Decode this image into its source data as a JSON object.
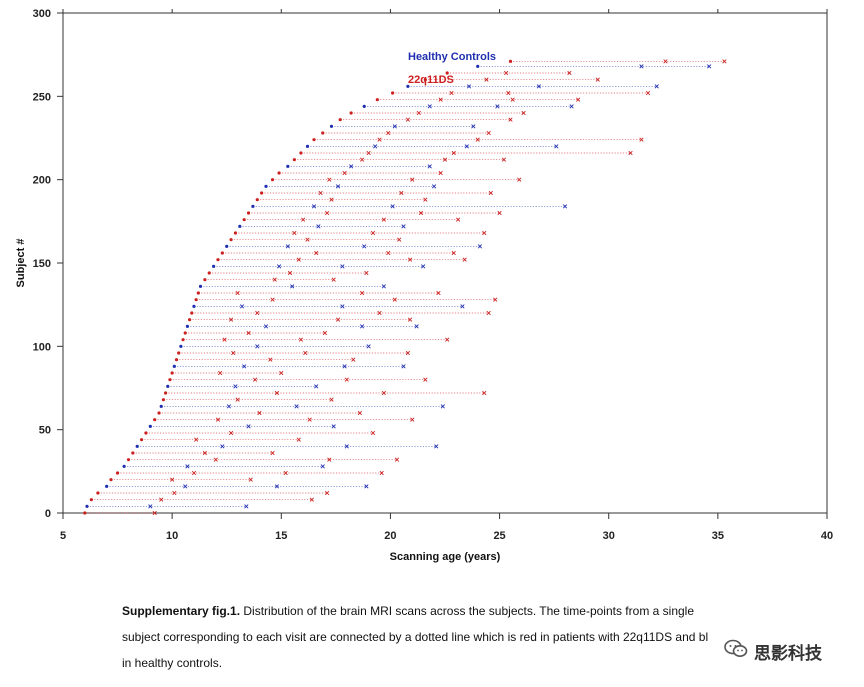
{
  "chart_data": {
    "type": "scatter",
    "xlabel": "Scanning age (years)",
    "ylabel": "Subject #",
    "xlim": [
      5,
      40
    ],
    "ylim": [
      0,
      300
    ],
    "x_ticks": [
      "5",
      "10",
      "15",
      "20",
      "25",
      "30",
      "35",
      "40"
    ],
    "y_ticks": [
      "0",
      "50",
      "100",
      "150",
      "200",
      "250",
      "300"
    ],
    "grid": false,
    "legend_position": "top-center",
    "series": [
      {
        "name": "Healthy Controls",
        "color": "#1f2fb0"
      },
      {
        "name": "22q11DS",
        "color": "#cc1f1f"
      }
    ],
    "subjects": [
      {
        "id": 0,
        "ages": [
          6.0,
          9.2
        ]
      },
      {
        "id": 4,
        "ages": [
          6.1,
          9.0,
          13.4
        ]
      },
      {
        "id": 8,
        "ages": [
          6.3,
          9.5,
          16.4
        ]
      },
      {
        "id": 12,
        "ages": [
          6.6,
          10.1,
          17.1
        ]
      },
      {
        "id": 16,
        "ages": [
          7.0,
          10.6,
          14.8,
          18.9
        ]
      },
      {
        "id": 20,
        "ages": [
          7.2,
          10.0,
          13.6
        ]
      },
      {
        "id": 24,
        "ages": [
          7.5,
          11.0,
          15.2,
          19.6
        ]
      },
      {
        "id": 28,
        "ages": [
          7.8,
          10.7,
          16.9
        ]
      },
      {
        "id": 32,
        "ages": [
          8.0,
          12.0,
          17.2,
          20.3
        ]
      },
      {
        "id": 36,
        "ages": [
          8.2,
          11.5,
          14.6
        ]
      },
      {
        "id": 40,
        "ages": [
          8.4,
          12.3,
          18.0,
          22.1
        ]
      },
      {
        "id": 44,
        "ages": [
          8.6,
          11.1,
          15.8
        ]
      },
      {
        "id": 48,
        "ages": [
          8.8,
          12.7,
          19.2
        ]
      },
      {
        "id": 52,
        "ages": [
          9.0,
          13.5,
          17.4
        ]
      },
      {
        "id": 56,
        "ages": [
          9.2,
          12.1,
          16.3,
          21.0
        ]
      },
      {
        "id": 60,
        "ages": [
          9.4,
          14.0,
          18.6
        ]
      },
      {
        "id": 64,
        "ages": [
          9.5,
          12.6,
          15.7,
          22.4
        ]
      },
      {
        "id": 68,
        "ages": [
          9.6,
          13.0,
          17.3
        ]
      },
      {
        "id": 72,
        "ages": [
          9.7,
          14.8,
          19.7,
          24.3
        ]
      },
      {
        "id": 76,
        "ages": [
          9.8,
          12.9,
          16.6
        ]
      },
      {
        "id": 80,
        "ages": [
          9.9,
          13.8,
          18.0,
          21.6
        ]
      },
      {
        "id": 84,
        "ages": [
          10.0,
          12.2,
          15.0
        ]
      },
      {
        "id": 88,
        "ages": [
          10.1,
          13.3,
          17.9,
          20.6
        ]
      },
      {
        "id": 92,
        "ages": [
          10.2,
          14.5,
          18.3
        ]
      },
      {
        "id": 96,
        "ages": [
          10.3,
          12.8,
          16.1,
          20.8
        ]
      },
      {
        "id": 100,
        "ages": [
          10.4,
          13.9,
          19.0
        ]
      },
      {
        "id": 104,
        "ages": [
          10.5,
          12.4,
          15.9,
          22.6
        ]
      },
      {
        "id": 108,
        "ages": [
          10.6,
          13.5,
          17.0
        ]
      },
      {
        "id": 112,
        "ages": [
          10.7,
          14.3,
          18.7,
          21.2
        ]
      },
      {
        "id": 116,
        "ages": [
          10.8,
          12.7,
          17.6,
          20.9
        ]
      },
      {
        "id": 120,
        "ages": [
          10.9,
          13.9,
          19.5,
          24.5
        ]
      },
      {
        "id": 124,
        "ages": [
          11.0,
          13.2,
          17.8,
          23.3
        ]
      },
      {
        "id": 128,
        "ages": [
          11.1,
          14.6,
          20.2,
          24.8
        ]
      },
      {
        "id": 132,
        "ages": [
          11.2,
          13.0,
          18.7,
          22.2
        ]
      },
      {
        "id": 136,
        "ages": [
          11.3,
          15.5,
          19.7
        ]
      },
      {
        "id": 140,
        "ages": [
          11.5,
          14.7,
          17.4
        ]
      },
      {
        "id": 144,
        "ages": [
          11.7,
          15.4,
          18.9
        ]
      },
      {
        "id": 148,
        "ages": [
          11.9,
          14.9,
          17.8,
          21.5
        ]
      },
      {
        "id": 152,
        "ages": [
          12.1,
          15.8,
          20.9,
          23.4
        ]
      },
      {
        "id": 156,
        "ages": [
          12.3,
          16.6,
          19.9,
          22.9
        ]
      },
      {
        "id": 160,
        "ages": [
          12.5,
          15.3,
          18.8,
          24.1
        ]
      },
      {
        "id": 164,
        "ages": [
          12.7,
          16.2,
          20.4
        ]
      },
      {
        "id": 168,
        "ages": [
          12.9,
          15.6,
          19.2,
          24.3
        ]
      },
      {
        "id": 172,
        "ages": [
          13.1,
          16.7,
          20.6
        ]
      },
      {
        "id": 176,
        "ages": [
          13.3,
          16.0,
          19.7,
          23.1
        ]
      },
      {
        "id": 180,
        "ages": [
          13.5,
          17.1,
          21.4,
          25.0
        ]
      },
      {
        "id": 184,
        "ages": [
          13.7,
          16.5,
          20.1,
          28.0
        ]
      },
      {
        "id": 188,
        "ages": [
          13.9,
          17.3,
          21.6
        ]
      },
      {
        "id": 192,
        "ages": [
          14.1,
          16.8,
          20.5,
          24.6
        ]
      },
      {
        "id": 196,
        "ages": [
          14.3,
          17.6,
          22.0
        ]
      },
      {
        "id": 200,
        "ages": [
          14.6,
          17.2,
          21.0,
          25.9
        ]
      },
      {
        "id": 204,
        "ages": [
          14.9,
          17.9,
          22.3
        ]
      },
      {
        "id": 208,
        "ages": [
          15.3,
          18.2,
          21.8
        ]
      },
      {
        "id": 212,
        "ages": [
          15.6,
          18.7,
          22.5,
          25.2
        ]
      },
      {
        "id": 216,
        "ages": [
          15.9,
          19.0,
          22.9,
          31.0
        ]
      },
      {
        "id": 220,
        "ages": [
          16.2,
          19.3,
          23.5,
          27.6
        ]
      },
      {
        "id": 224,
        "ages": [
          16.5,
          19.5,
          24.0,
          31.5
        ]
      },
      {
        "id": 228,
        "ages": [
          16.9,
          19.9,
          24.5
        ]
      },
      {
        "id": 232,
        "ages": [
          17.3,
          20.2,
          23.8
        ]
      },
      {
        "id": 236,
        "ages": [
          17.7,
          20.8,
          25.5
        ]
      },
      {
        "id": 240,
        "ages": [
          18.2,
          21.3,
          26.1
        ]
      },
      {
        "id": 244,
        "ages": [
          18.8,
          21.8,
          24.9,
          28.3
        ]
      },
      {
        "id": 248,
        "ages": [
          19.4,
          22.3,
          25.6,
          28.6
        ]
      },
      {
        "id": 252,
        "ages": [
          20.1,
          22.8,
          25.4,
          31.8
        ]
      },
      {
        "id": 256,
        "ages": [
          20.8,
          23.6,
          26.8,
          32.2
        ]
      },
      {
        "id": 260,
        "ages": [
          21.6,
          24.4,
          29.5
        ]
      },
      {
        "id": 264,
        "ages": [
          22.6,
          25.3,
          28.2
        ]
      },
      {
        "id": 268,
        "ages": [
          24.0,
          31.5,
          34.6
        ]
      },
      {
        "id": 271,
        "ages": [
          25.5,
          32.6,
          35.3
        ]
      }
    ],
    "legend_order": [
      "22q11DS",
      "Healthy Controls"
    ]
  },
  "caption": {
    "label": "Supplementary  fig.1.",
    "line1_rest": " Distribution of the brain MRI scans across the subjects. The time-points from a single",
    "line2": "subject corresponding to each visit are connected by a dotted line which is red in patients with 22q11DS and bl",
    "line3": "in healthy controls."
  },
  "watermark": {
    "text": "思影科技",
    "icon": "wechat-icon"
  }
}
